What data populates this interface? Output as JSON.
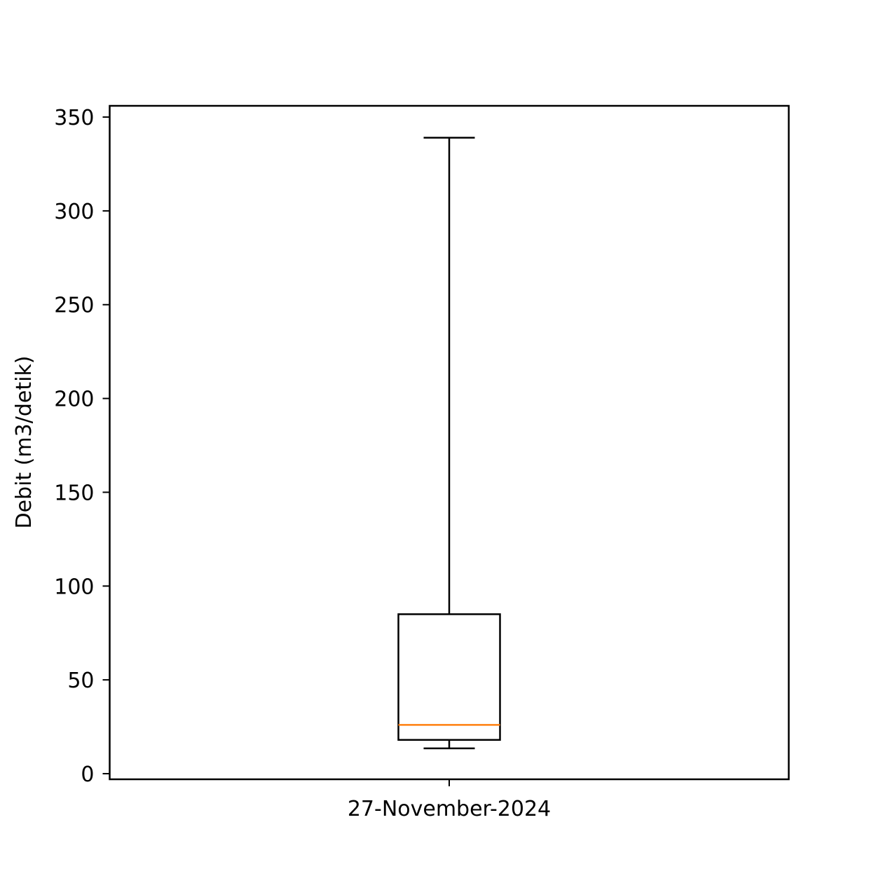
{
  "chart_data": {
    "type": "box",
    "title": "",
    "xlabel": "",
    "ylabel": "Debit (m3/detik)",
    "ylim": [
      -3,
      356
    ],
    "yticks": [
      0,
      50,
      100,
      150,
      200,
      250,
      300,
      350
    ],
    "ytick_labels": [
      "0",
      "50",
      "100",
      "150",
      "200",
      "250",
      "300",
      "350"
    ],
    "grid": false,
    "categories": [
      "27-November-2024"
    ],
    "boxes": [
      {
        "category": "27-November-2024",
        "whisker_low": 13.5,
        "q1": 18,
        "median": 26,
        "q3": 85,
        "whisker_high": 339
      }
    ],
    "colors": {
      "box": "#000000",
      "median": "#ff7f0e"
    }
  }
}
